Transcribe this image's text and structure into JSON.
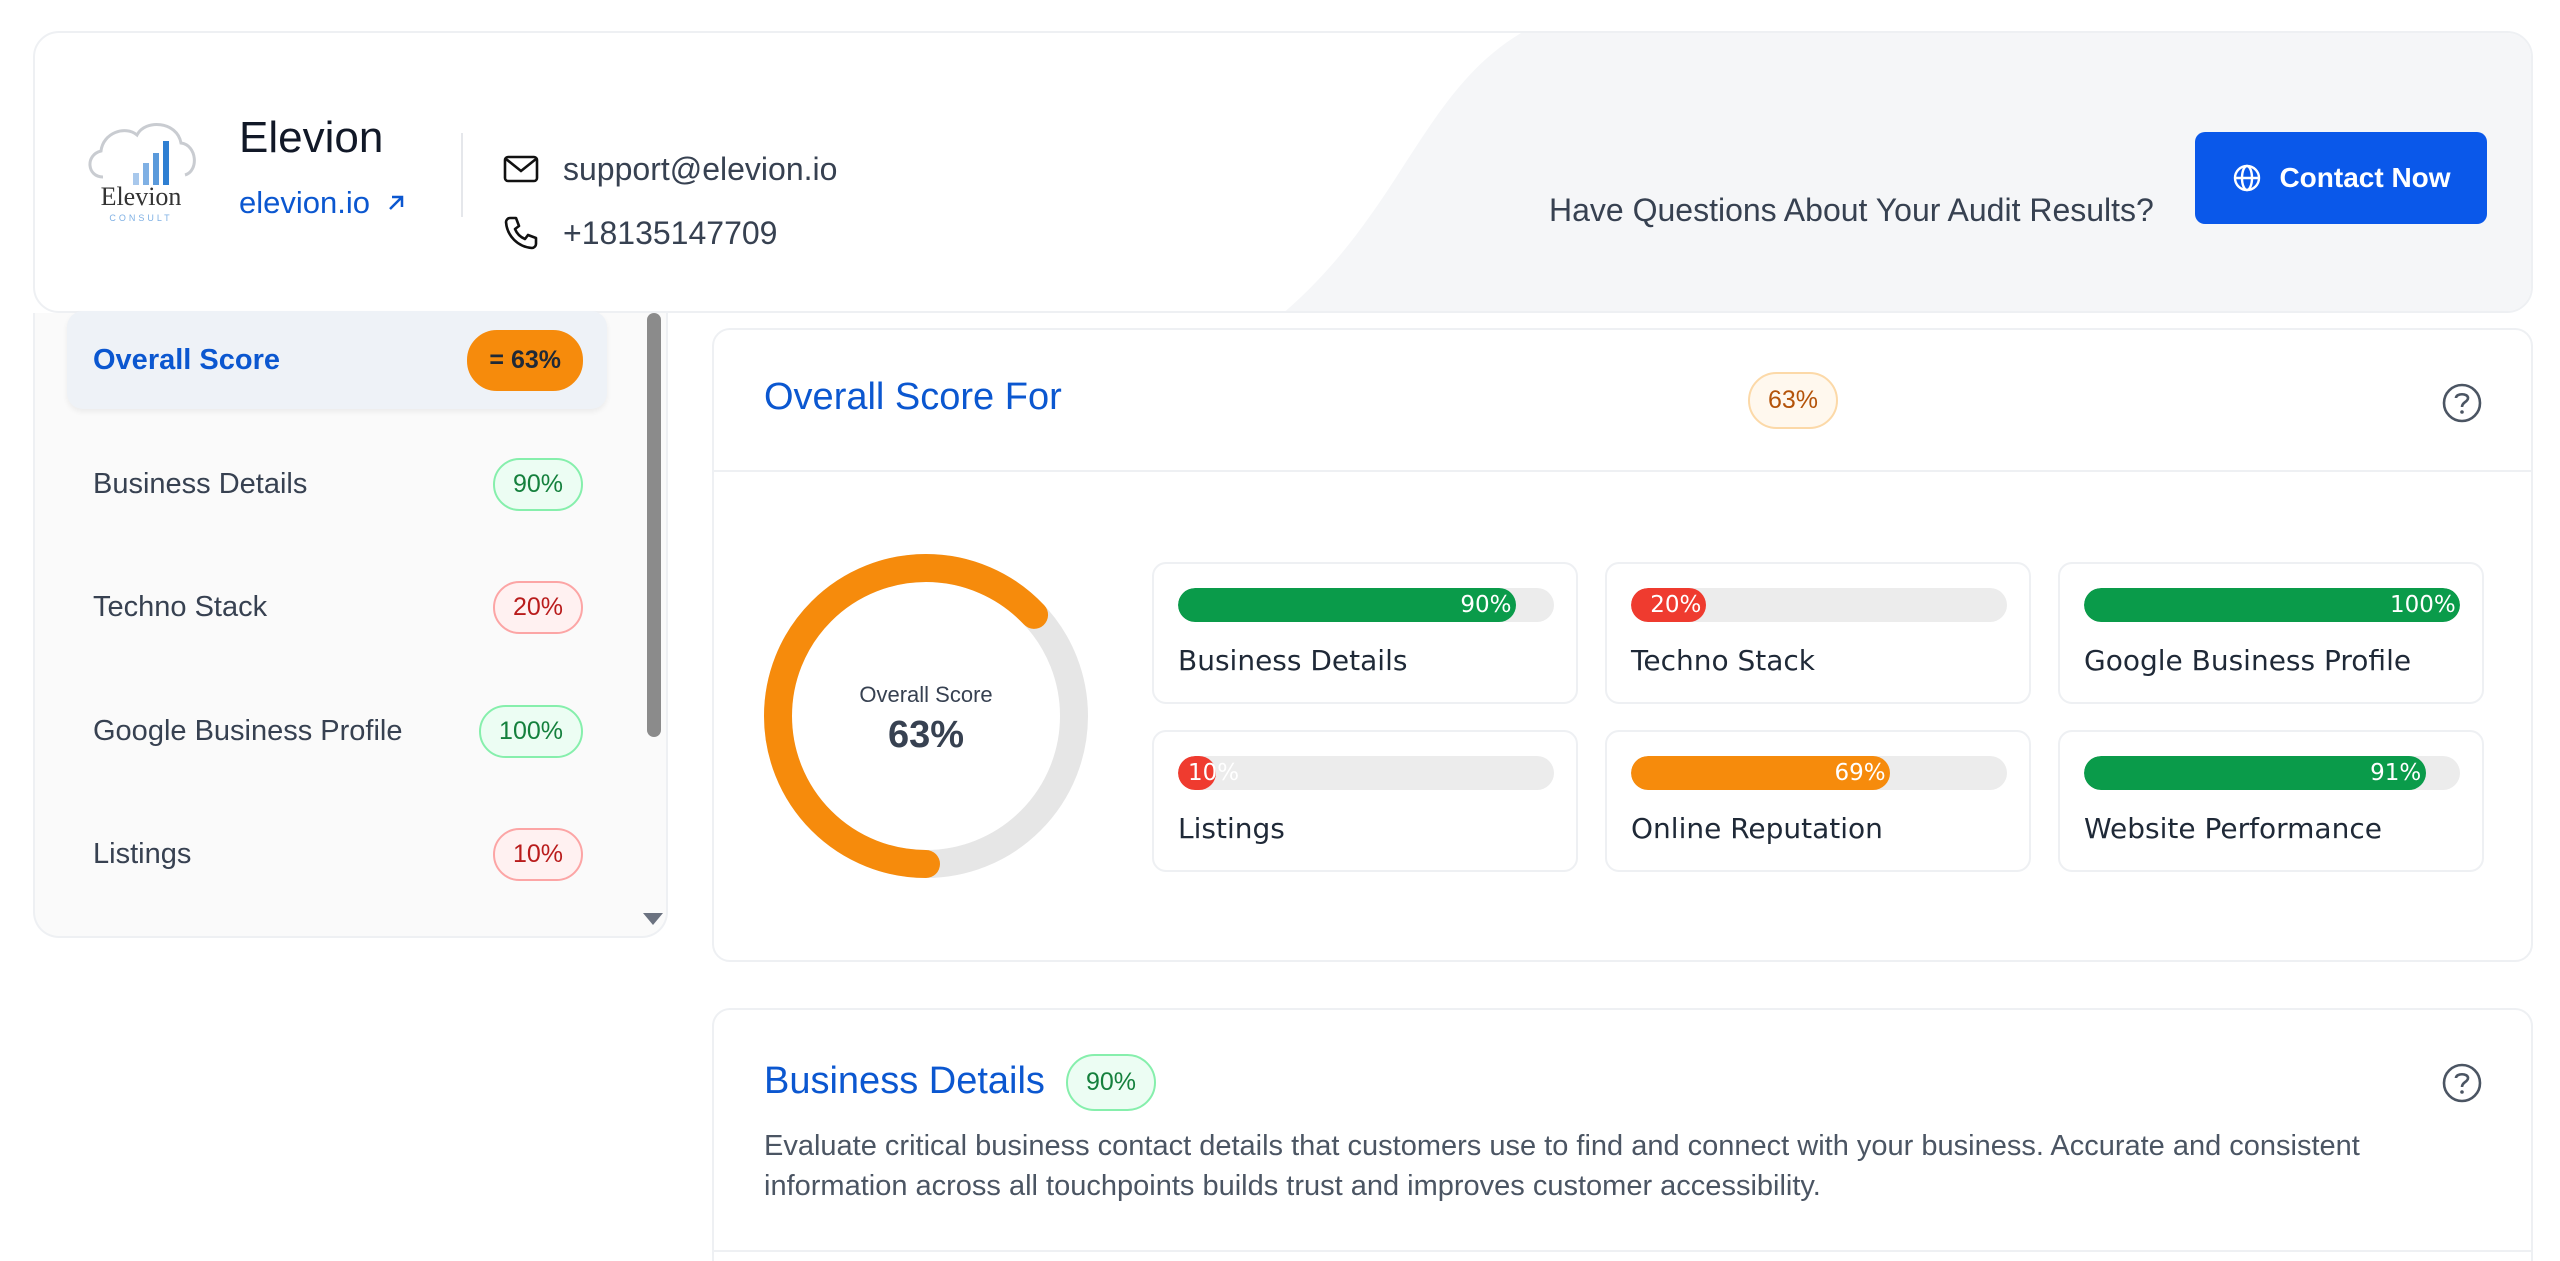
{
  "header": {
    "brand_name": "Elevion",
    "brand_link": "elevion.io",
    "logo_text": "Elevion",
    "logo_subtext": "CONSULT",
    "email": "support@elevion.io",
    "phone": "+18135147709",
    "question": "Have Questions About Your Audit Results?",
    "contact_button": "Contact Now",
    "accent_color": "#0a58ea"
  },
  "sidebar": {
    "items": [
      {
        "label": "Overall Score",
        "badge": "= 63%",
        "active": true
      },
      {
        "label": "Business Details",
        "badge": "90%",
        "status": "green"
      },
      {
        "label": "Techno Stack",
        "badge": "20%",
        "status": "red"
      },
      {
        "label": "Google Business Profile",
        "badge": "100%",
        "status": "green"
      },
      {
        "label": "Listings",
        "badge": "10%",
        "status": "red"
      }
    ]
  },
  "overall": {
    "title": "Overall Score For",
    "badge": "63%",
    "donut_label": "Overall Score",
    "donut_value": "63%",
    "donut_fraction": 0.63,
    "donut_color": "#f68b0c",
    "metrics": [
      {
        "name": "Business Details",
        "value": 90,
        "label": "90%",
        "color": "#0a9b4a"
      },
      {
        "name": "Techno Stack",
        "value": 20,
        "label": "20%",
        "color": "#ef3b2f"
      },
      {
        "name": "Google Business Profile",
        "value": 100,
        "label": "100%",
        "color": "#0a9b4a"
      },
      {
        "name": "Listings",
        "value": 10,
        "label": "10%",
        "color": "#ef3b2f"
      },
      {
        "name": "Online Reputation",
        "value": 69,
        "label": "69%",
        "color": "#f68b0c"
      },
      {
        "name": "Website Performance",
        "value": 91,
        "label": "91%",
        "color": "#0a9b4a"
      }
    ]
  },
  "business": {
    "title": "Business Details",
    "badge": "90%",
    "description": "Evaluate critical business contact details that customers use to find and connect with your business. Accurate and consistent information across all touchpoints builds trust and improves customer accessibility."
  }
}
